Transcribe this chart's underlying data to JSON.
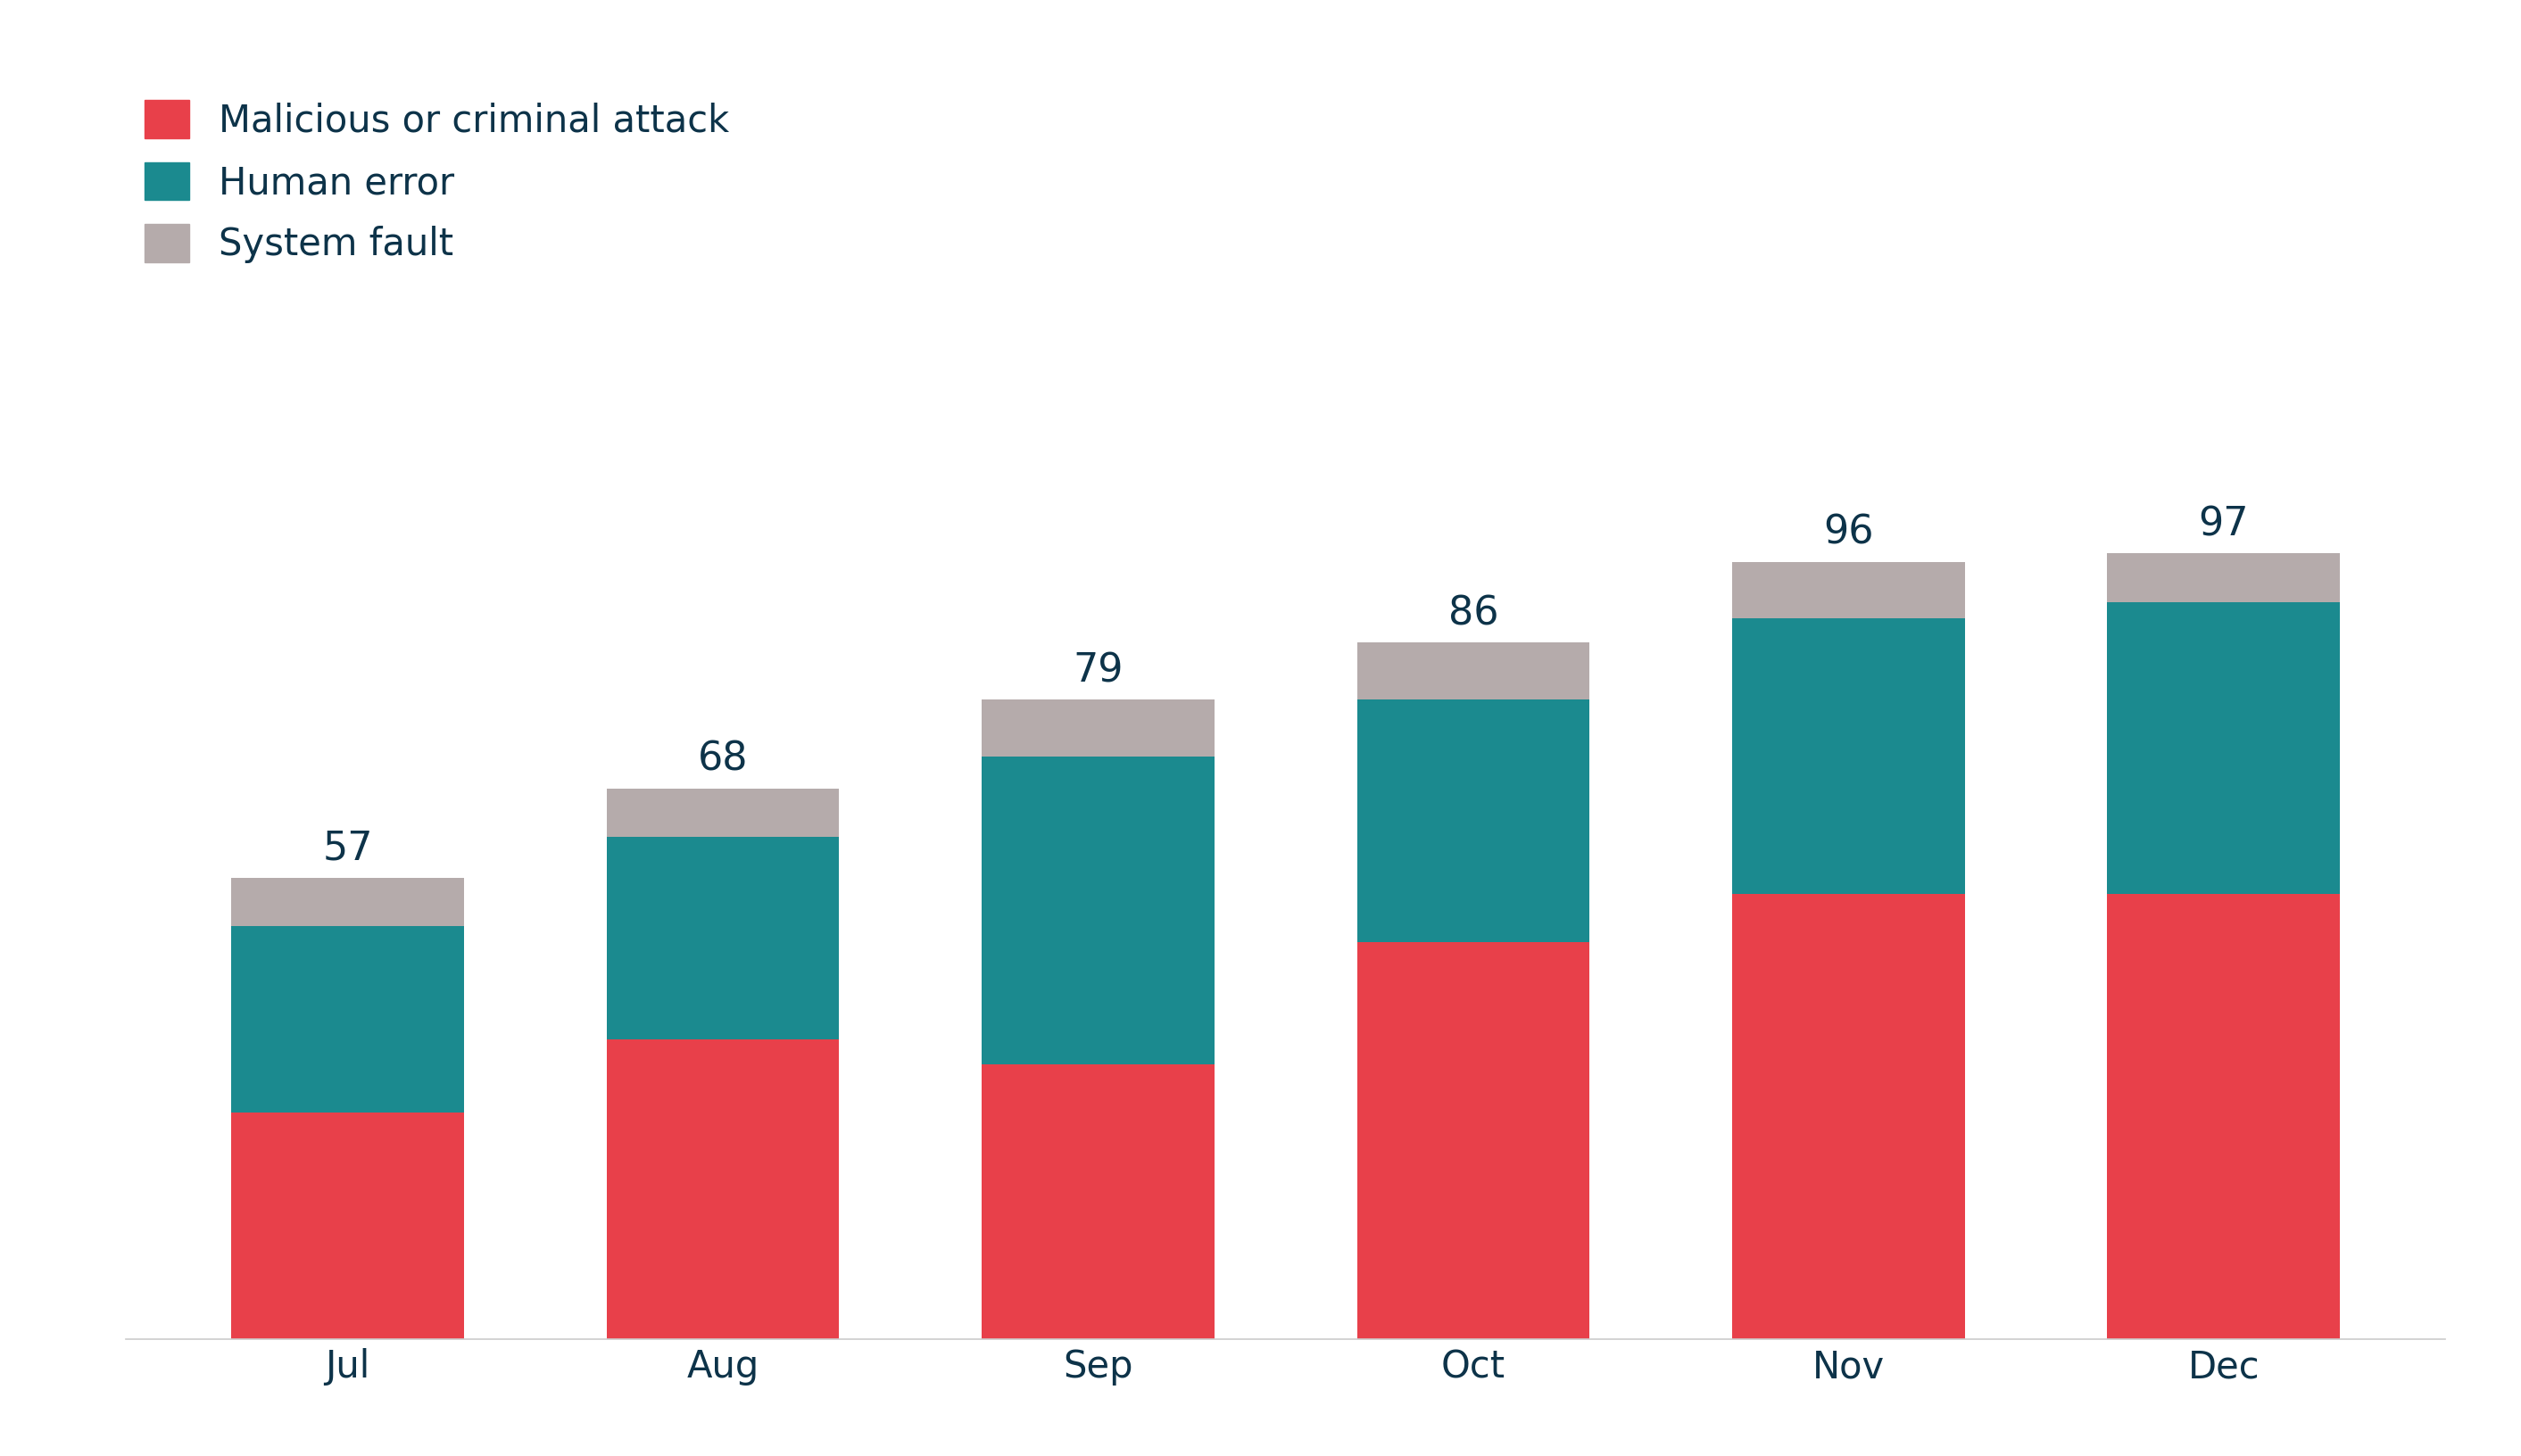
{
  "months": [
    "Jul",
    "Aug",
    "Sep",
    "Oct",
    "Nov",
    "Dec"
  ],
  "totals": [
    57,
    68,
    79,
    86,
    96,
    97
  ],
  "malicious": [
    28,
    37,
    34,
    49,
    55,
    55
  ],
  "human_error": [
    23,
    25,
    38,
    30,
    34,
    36
  ],
  "system_fault": [
    6,
    6,
    7,
    7,
    7,
    6
  ],
  "color_malicious": "#E8404A",
  "color_human_error": "#1B8A8F",
  "color_system_fault": "#B5ABAB",
  "background_color": "#FFFFFF",
  "text_color": "#0D3349",
  "label_malicious": "Malicious or criminal attack",
  "label_human_error": "Human error",
  "label_system_fault": "System fault",
  "bar_width": 0.62,
  "ylim": [
    0,
    115
  ],
  "tick_fontsize": 30,
  "legend_fontsize": 30,
  "annotation_fontsize": 32
}
